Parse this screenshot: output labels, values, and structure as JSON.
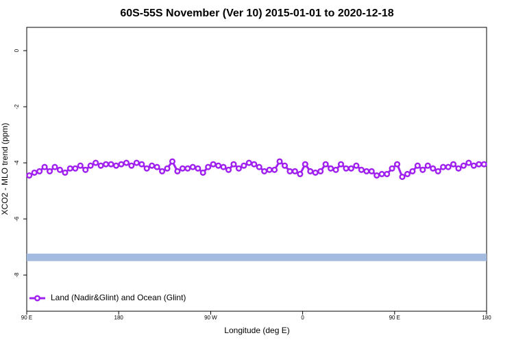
{
  "chart_data": {
    "type": "line",
    "title": "60S-55S November (Ver 10)   2015-01-01 to 2020-12-18",
    "x_label": "Longitude (deg E)",
    "y_label": "XCO2 - MLO trend (ppm)",
    "xlim": [
      90,
      540
    ],
    "ylim": [
      -9.29,
      0.83
    ],
    "xticks": [
      {
        "value": 90,
        "label": "90 E"
      },
      {
        "value": 180,
        "label": "180"
      },
      {
        "value": 270,
        "label": "90 W"
      },
      {
        "value": 360,
        "label": "0"
      },
      {
        "value": 450,
        "label": "90 E"
      },
      {
        "value": 540,
        "label": "180"
      }
    ],
    "yticks": [
      0,
      -2,
      -4,
      -6,
      -8
    ],
    "band_y": -7.37,
    "band_color": "#a4bbe0",
    "legend_position": "bottom-left",
    "x": [
      92.5,
      97.5,
      102.5,
      107.5,
      112.5,
      117.5,
      122.5,
      127.5,
      132.5,
      137.5,
      142.5,
      147.5,
      152.5,
      157.5,
      162.5,
      167.5,
      172.5,
      177.5,
      182.5,
      187.5,
      192.5,
      197.5,
      202.5,
      207.5,
      212.5,
      217.5,
      222.5,
      227.5,
      232.5,
      237.5,
      242.5,
      247.5,
      252.5,
      257.5,
      262.5,
      267.5,
      272.5,
      277.5,
      282.5,
      287.5,
      292.5,
      297.5,
      302.5,
      307.5,
      312.5,
      317.5,
      322.5,
      327.5,
      332.5,
      337.5,
      342.5,
      347.5,
      352.5,
      357.5,
      362.5,
      367.5,
      372.5,
      377.5,
      382.5,
      387.5,
      392.5,
      397.5,
      402.5,
      407.5,
      412.5,
      417.5,
      422.5,
      427.5,
      432.5,
      437.5,
      442.5,
      447.5,
      452.5,
      457.5,
      462.5,
      467.5,
      472.5,
      477.5,
      482.5,
      487.5,
      492.5,
      497.5,
      502.5,
      507.5,
      512.5,
      517.5,
      522.5,
      527.5,
      532.5,
      537.5
    ],
    "series": [
      {
        "name": "Land (Nadir&Glint) and Ocean (Glint)",
        "color": "#a020f0",
        "values": [
          -4.45,
          -4.35,
          -4.3,
          -4.15,
          -4.3,
          -4.15,
          -4.25,
          -4.35,
          -4.2,
          -4.2,
          -4.1,
          -4.25,
          -4.1,
          -4.0,
          -4.1,
          -4.05,
          -4.05,
          -4.1,
          -4.05,
          -4.0,
          -4.1,
          -4.0,
          -4.05,
          -4.2,
          -4.1,
          -4.15,
          -4.3,
          -4.2,
          -3.95,
          -4.3,
          -4.2,
          -4.2,
          -4.15,
          -4.2,
          -4.35,
          -4.15,
          -4.05,
          -4.1,
          -4.15,
          -4.25,
          -4.05,
          -4.2,
          -4.1,
          -4.0,
          -4.05,
          -4.15,
          -4.3,
          -4.25,
          -4.25,
          -3.95,
          -4.1,
          -4.3,
          -4.3,
          -4.4,
          -4.05,
          -4.3,
          -4.35,
          -4.3,
          -4.05,
          -4.2,
          -4.25,
          -4.05,
          -4.2,
          -4.2,
          -4.1,
          -4.25,
          -4.3,
          -4.3,
          -4.45,
          -4.4,
          -4.4,
          -4.2,
          -4.05,
          -4.5,
          -4.4,
          -4.3,
          -4.1,
          -4.25,
          -4.1,
          -4.2,
          -4.3,
          -4.15,
          -4.15,
          -4.05,
          -4.2,
          -4.1,
          -4.0,
          -4.1,
          -4.05,
          -4.05
        ]
      }
    ]
  }
}
